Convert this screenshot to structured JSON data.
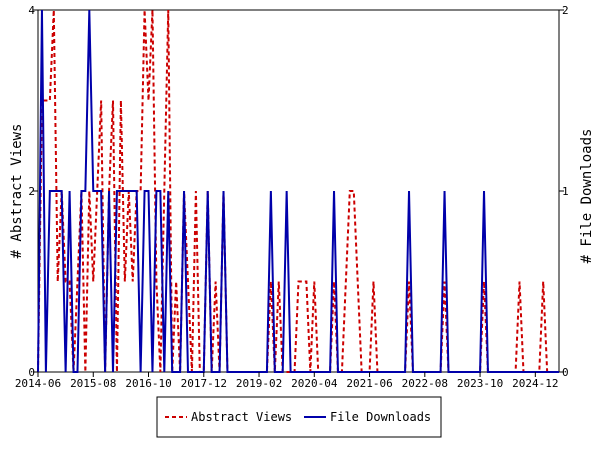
{
  "chart_data": {
    "type": "line",
    "x_ticks": [
      "2014-06",
      "2015-08",
      "2016-10",
      "2017-12",
      "2019-02",
      "2020-04",
      "2021-06",
      "2022-08",
      "2023-10",
      "2024-12"
    ],
    "x_start": "2014-06",
    "x_end": "2025-06",
    "ylabel_left": "# Abstract Views",
    "ylabel_right": "# File Downloads",
    "ylim_left": [
      0,
      4
    ],
    "ylim_right": [
      0,
      2
    ],
    "yticks_left": [
      "0",
      "2",
      "4"
    ],
    "yticks_right": [
      "0",
      "1",
      "2"
    ],
    "grid": false,
    "legend_position": "bottom-center",
    "series": [
      {
        "name": "Abstract Views",
        "axis": "left",
        "color": "#cc0000",
        "style": "dashed",
        "x": [
          "2014-06",
          "2014-07",
          "2014-08",
          "2014-09",
          "2014-10",
          "2014-11",
          "2014-12",
          "2015-01",
          "2015-02",
          "2015-03",
          "2015-04",
          "2015-05",
          "2015-06",
          "2015-07",
          "2015-08",
          "2015-09",
          "2015-10",
          "2015-11",
          "2015-12",
          "2016-01",
          "2016-02",
          "2016-03",
          "2016-04",
          "2016-05",
          "2016-06",
          "2016-07",
          "2016-08",
          "2016-09",
          "2016-10",
          "2016-11",
          "2016-12",
          "2017-01",
          "2017-02",
          "2017-03",
          "2017-04",
          "2017-05",
          "2017-06",
          "2017-07",
          "2017-08",
          "2017-09",
          "2017-10",
          "2017-11",
          "2017-12",
          "2018-01",
          "2018-02",
          "2018-03",
          "2018-04",
          "2018-05",
          "2018-06",
          "2018-07",
          "2018-08",
          "2018-09",
          "2018-10",
          "2018-11",
          "2018-12",
          "2019-01",
          "2019-02",
          "2019-03",
          "2019-04",
          "2019-05",
          "2019-06",
          "2019-07",
          "2019-08",
          "2019-09",
          "2019-10",
          "2019-11",
          "2019-12",
          "2020-01",
          "2020-02",
          "2020-03",
          "2020-04",
          "2020-05",
          "2020-06",
          "2020-07",
          "2020-08",
          "2020-09",
          "2020-10",
          "2020-11",
          "2020-12",
          "2021-01",
          "2021-02",
          "2021-03",
          "2021-04",
          "2021-05",
          "2021-06",
          "2021-07",
          "2021-08",
          "2021-09",
          "2021-10",
          "2021-11",
          "2021-12",
          "2022-01",
          "2022-02",
          "2022-03",
          "2022-04",
          "2022-05",
          "2022-06",
          "2022-07",
          "2022-08",
          "2022-09",
          "2022-10",
          "2022-11",
          "2022-12",
          "2023-01",
          "2023-02",
          "2023-03",
          "2023-04",
          "2023-05",
          "2023-06",
          "2023-07",
          "2023-08",
          "2023-09",
          "2023-10",
          "2023-11",
          "2023-12",
          "2024-01",
          "2024-02",
          "2024-03",
          "2024-04",
          "2024-05",
          "2024-06",
          "2024-07",
          "2024-08",
          "2024-09",
          "2024-10",
          "2024-11",
          "2024-12",
          "2025-01",
          "2025-02",
          "2025-03",
          "2025-04",
          "2025-05",
          "2025-06"
        ],
        "values": [
          0,
          3,
          3,
          3,
          4,
          1,
          2,
          1,
          1,
          0,
          1,
          2,
          0,
          2,
          1,
          2,
          3,
          0,
          2,
          3,
          0,
          3,
          1,
          2,
          1,
          2,
          2,
          4,
          3,
          4,
          1,
          0,
          2,
          4,
          0,
          1,
          0,
          2,
          1,
          0,
          2,
          0,
          0,
          2,
          0,
          1,
          0,
          2,
          0,
          0,
          0,
          0,
          0,
          0,
          0,
          0,
          0,
          0,
          0,
          1,
          0,
          1,
          0,
          0,
          0,
          0,
          1,
          1,
          1,
          0,
          1,
          0,
          0,
          0,
          0,
          1,
          0,
          0,
          1,
          2,
          2,
          1,
          0,
          0,
          0,
          1,
          0,
          0,
          0,
          0,
          0,
          0,
          0,
          0,
          1,
          0,
          0,
          0,
          0,
          0,
          0,
          0,
          0,
          1,
          0,
          0,
          0,
          0,
          0,
          0,
          0,
          0,
          0,
          1,
          0,
          0,
          0,
          0,
          0,
          0,
          0,
          0,
          1,
          0,
          0,
          0,
          0,
          0,
          1,
          0,
          0,
          0,
          0
        ]
      },
      {
        "name": "File Downloads",
        "axis": "right",
        "color": "#0000aa",
        "style": "solid",
        "x": [
          "2014-06",
          "2014-07",
          "2014-08",
          "2014-09",
          "2014-10",
          "2014-11",
          "2014-12",
          "2015-01",
          "2015-02",
          "2015-03",
          "2015-04",
          "2015-05",
          "2015-06",
          "2015-07",
          "2015-08",
          "2015-09",
          "2015-10",
          "2015-11",
          "2015-12",
          "2016-01",
          "2016-02",
          "2016-03",
          "2016-04",
          "2016-05",
          "2016-06",
          "2016-07",
          "2016-08",
          "2016-09",
          "2016-10",
          "2016-11",
          "2016-12",
          "2017-01",
          "2017-02",
          "2017-03",
          "2017-04",
          "2017-05",
          "2017-06",
          "2017-07",
          "2017-08",
          "2017-09",
          "2017-10",
          "2017-11",
          "2017-12",
          "2018-01",
          "2018-02",
          "2018-03",
          "2018-04",
          "2018-05",
          "2018-06",
          "2018-07",
          "2018-08",
          "2018-09",
          "2018-10",
          "2018-11",
          "2018-12",
          "2019-01",
          "2019-02",
          "2019-03",
          "2019-04",
          "2019-05",
          "2019-06",
          "2019-07",
          "2019-08",
          "2019-09",
          "2019-10",
          "2019-11",
          "2019-12",
          "2020-01",
          "2020-02",
          "2020-03",
          "2020-04",
          "2020-05",
          "2020-06",
          "2020-07",
          "2020-08",
          "2020-09",
          "2020-10",
          "2020-11",
          "2020-12",
          "2021-01",
          "2021-02",
          "2021-03",
          "2021-04",
          "2021-05",
          "2021-06",
          "2021-07",
          "2021-08",
          "2021-09",
          "2021-10",
          "2021-11",
          "2021-12",
          "2022-01",
          "2022-02",
          "2022-03",
          "2022-04",
          "2022-05",
          "2022-06",
          "2022-07",
          "2022-08",
          "2022-09",
          "2022-10",
          "2022-11",
          "2022-12",
          "2023-01",
          "2023-02",
          "2023-03",
          "2023-04",
          "2023-05",
          "2023-06",
          "2023-07",
          "2023-08",
          "2023-09",
          "2023-10",
          "2023-11",
          "2023-12",
          "2024-01",
          "2024-02",
          "2024-03",
          "2024-04",
          "2024-05",
          "2024-06",
          "2024-07",
          "2024-08",
          "2024-09",
          "2024-10",
          "2024-11",
          "2024-12",
          "2025-01",
          "2025-02",
          "2025-03",
          "2025-04",
          "2025-05",
          "2025-06"
        ],
        "values": [
          0,
          2,
          0,
          1,
          1,
          1,
          1,
          0,
          1,
          0,
          0,
          1,
          1,
          2,
          1,
          1,
          1,
          0,
          1,
          0,
          1,
          1,
          1,
          1,
          1,
          1,
          0,
          1,
          1,
          0,
          1,
          1,
          0,
          1,
          0,
          0,
          0,
          1,
          0,
          0,
          0,
          0,
          0,
          1,
          0,
          0,
          0,
          1,
          0,
          0,
          0,
          0,
          0,
          0,
          0,
          0,
          0,
          0,
          0,
          1,
          0,
          0,
          0,
          1,
          0,
          0,
          0,
          0,
          0,
          0,
          0,
          0,
          0,
          0,
          0,
          1,
          0,
          0,
          0,
          0,
          0,
          0,
          0,
          0,
          0,
          0,
          0,
          0,
          0,
          0,
          0,
          0,
          0,
          0,
          1,
          0,
          0,
          0,
          0,
          0,
          0,
          0,
          0,
          1,
          0,
          0,
          0,
          0,
          0,
          0,
          0,
          0,
          0,
          1,
          0,
          0,
          0,
          0,
          0,
          0,
          0,
          0,
          0,
          0,
          0,
          0,
          0,
          0,
          0,
          0,
          0,
          0,
          0
        ]
      }
    ]
  }
}
